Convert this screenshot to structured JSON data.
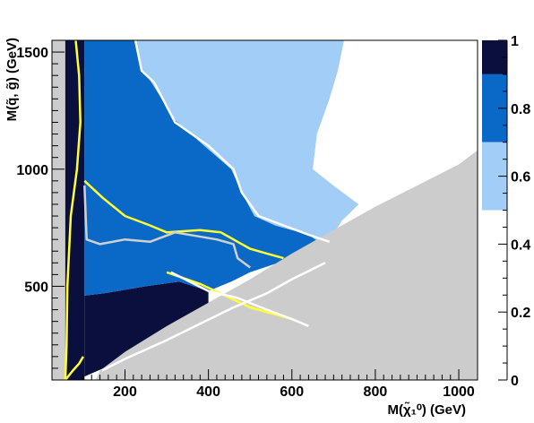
{
  "chart_data": {
    "type": "heatmap",
    "title": "",
    "xlabel": "M(χ̃₁⁰) (GeV)",
    "ylabel": "M(q̃, g̃) (GeV)",
    "xlim": [
      25,
      1045
    ],
    "ylim": [
      100,
      1550
    ],
    "x_ticks": [
      "200",
      "400",
      "600",
      "800",
      "1000"
    ],
    "y_ticks": [
      "500",
      "1000",
      "1500"
    ],
    "z_ticks": [
      "0",
      "0.2",
      "0.4",
      "0.6",
      "0.8",
      "1"
    ],
    "zlim": [
      0,
      1
    ],
    "legend_position": "right",
    "levels": [
      {
        "range": [
          0.9,
          1.0
        ],
        "color": "#0a0f3d"
      },
      {
        "range": [
          0.7,
          0.9
        ],
        "color": "#0a68c6"
      },
      {
        "range": [
          0.5,
          0.7
        ],
        "color": "#a2cdf6"
      },
      {
        "range": [
          0.0,
          0.5
        ],
        "color": "#ffffff"
      }
    ],
    "excluded_region_color": "#cccccc",
    "regions": [
      {
        "level": 1.0,
        "polygon": [
          [
            25,
            100
          ],
          [
            103,
            100
          ],
          [
            103,
            1550
          ],
          [
            25,
            1550
          ]
        ]
      },
      {
        "level": 1.0,
        "polygon": [
          [
            103,
            115
          ],
          [
            200,
            190
          ],
          [
            300,
            270
          ],
          [
            400,
            360
          ],
          [
            400,
            480
          ],
          [
            330,
            520
          ],
          [
            250,
            500
          ],
          [
            150,
            470
          ],
          [
            103,
            460
          ]
        ]
      },
      {
        "level": 0.8,
        "polygon": [
          [
            103,
            460
          ],
          [
            103,
            1550
          ],
          [
            225,
            1550
          ],
          [
            240,
            1420
          ],
          [
            260,
            1380
          ],
          [
            320,
            1210
          ],
          [
            390,
            1100
          ],
          [
            455,
            1000
          ],
          [
            480,
            900
          ],
          [
            510,
            800
          ],
          [
            560,
            760
          ],
          [
            640,
            720
          ],
          [
            680,
            670
          ],
          [
            600,
            620
          ],
          [
            500,
            560
          ],
          [
            455,
            520
          ],
          [
            400,
            480
          ],
          [
            330,
            520
          ],
          [
            250,
            500
          ],
          [
            150,
            470
          ]
        ]
      },
      {
        "level": 0.6,
        "polygon": [
          [
            225,
            1550
          ],
          [
            725,
            1550
          ],
          [
            710,
            1420
          ],
          [
            690,
            1300
          ],
          [
            660,
            1150
          ],
          [
            650,
            1000
          ],
          [
            700,
            930
          ],
          [
            760,
            850
          ],
          [
            720,
            780
          ],
          [
            680,
            670
          ],
          [
            640,
            720
          ],
          [
            560,
            760
          ],
          [
            510,
            800
          ],
          [
            480,
            900
          ],
          [
            455,
            1000
          ],
          [
            390,
            1100
          ],
          [
            320,
            1210
          ],
          [
            260,
            1380
          ],
          [
            240,
            1420
          ]
        ]
      }
    ],
    "contours": [
      {
        "color": "#ffff33",
        "points": [
          [
            57,
            100
          ],
          [
            60,
            250
          ],
          [
            62,
            500
          ],
          [
            70,
            800
          ],
          [
            85,
            1000
          ],
          [
            93,
            1200
          ],
          [
            90,
            1400
          ],
          [
            82,
            1550
          ]
        ]
      },
      {
        "color": "#ffff33",
        "points": [
          [
            57,
            100
          ],
          [
            75,
            140
          ],
          [
            90,
            170
          ],
          [
            100,
            200
          ]
        ]
      },
      {
        "color": "#ffff33",
        "points": [
          [
            103,
            950
          ],
          [
            145,
            880
          ],
          [
            200,
            800
          ],
          [
            260,
            760
          ],
          [
            300,
            730
          ],
          [
            380,
            740
          ],
          [
            430,
            730
          ],
          [
            470,
            690
          ],
          [
            500,
            660
          ],
          [
            540,
            640
          ],
          [
            580,
            620
          ]
        ]
      },
      {
        "color": "#ffff33",
        "points": [
          [
            300,
            560
          ],
          [
            380,
            510
          ],
          [
            440,
            460
          ],
          [
            500,
            410
          ],
          [
            560,
            380
          ],
          [
            600,
            360
          ]
        ]
      },
      {
        "color": "#d0d0d0",
        "points": [
          [
            103,
            930
          ],
          [
            108,
            700
          ],
          [
            140,
            680
          ],
          [
            200,
            700
          ],
          [
            260,
            690
          ],
          [
            320,
            730
          ],
          [
            420,
            700
          ],
          [
            460,
            680
          ],
          [
            470,
            620
          ],
          [
            500,
            580
          ]
        ]
      },
      {
        "color": "#ffffff",
        "points": [
          [
            225,
            1550
          ],
          [
            240,
            1420
          ],
          [
            270,
            1370
          ],
          [
            320,
            1200
          ],
          [
            400,
            1100
          ],
          [
            460,
            1000
          ],
          [
            480,
            900
          ],
          [
            520,
            800
          ],
          [
            580,
            760
          ],
          [
            640,
            720
          ],
          [
            690,
            690
          ]
        ]
      },
      {
        "color": "#ffffff",
        "points": [
          [
            310,
            560
          ],
          [
            400,
            480
          ],
          [
            470,
            450
          ],
          [
            540,
            400
          ],
          [
            600,
            360
          ],
          [
            640,
            330
          ]
        ]
      },
      {
        "color": "#ffffff",
        "points": [
          [
            145,
            140
          ],
          [
            200,
            190
          ],
          [
            300,
            270
          ],
          [
            380,
            340
          ],
          [
            460,
            410
          ],
          [
            540,
            470
          ],
          [
            600,
            530
          ],
          [
            680,
            600
          ]
        ]
      }
    ],
    "excluded_polygon": [
      [
        25,
        100
      ],
      [
        25,
        1550
      ],
      [
        57,
        1550
      ],
      [
        57,
        100
      ]
    ],
    "kinematic_polygon": [
      [
        130,
        100
      ],
      [
        1045,
        100
      ],
      [
        1045,
        1080
      ],
      [
        1000,
        1020
      ],
      [
        900,
        930
      ],
      [
        800,
        840
      ],
      [
        700,
        740
      ],
      [
        600,
        640
      ],
      [
        500,
        530
      ],
      [
        400,
        430
      ],
      [
        300,
        330
      ],
      [
        200,
        220
      ],
      [
        140,
        140
      ]
    ]
  }
}
